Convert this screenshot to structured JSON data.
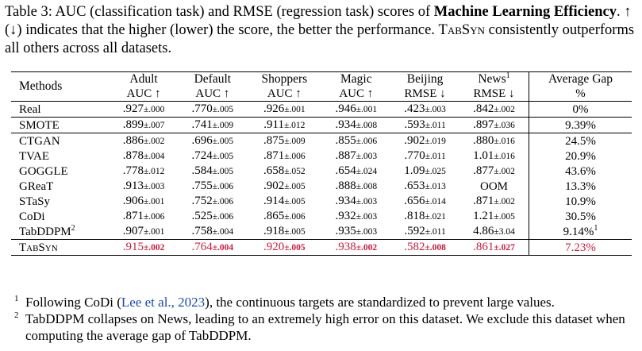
{
  "caption": {
    "label": "Table 3:",
    "text_a": " AUC (classification task) and RMSE (regression task) scores of ",
    "bold": "Machine Learning Efficiency",
    "text_b": ". ↑ (↓) indicates that the higher (lower) the score, the better the performance. ",
    "model": "TabSyn",
    "text_c": " consistently outperforms all others across all datasets."
  },
  "header": {
    "methods": "Methods",
    "columns": [
      {
        "name": "Adult",
        "sup": "",
        "metric": "AUC ↑"
      },
      {
        "name": "Default",
        "sup": "",
        "metric": "AUC ↑"
      },
      {
        "name": "Shoppers",
        "sup": "",
        "metric": "AUC ↑"
      },
      {
        "name": "Magic",
        "sup": "",
        "metric": "AUC ↑"
      },
      {
        "name": "Beijing",
        "sup": "",
        "metric": "RMSE ↓"
      },
      {
        "name": "News",
        "sup": "1",
        "metric": "RMSE ↓"
      }
    ],
    "gap": {
      "name": "Average Gap",
      "metric": "%"
    }
  },
  "rows": [
    {
      "method": "Real",
      "sup": "",
      "cells": [
        {
          "v": ".927",
          "s": "±.000"
        },
        {
          "v": ".770",
          "s": "±.005"
        },
        {
          "v": ".926",
          "s": "±.001"
        },
        {
          "v": ".946",
          "s": "±.001"
        },
        {
          "v": ".423",
          "s": "±.003"
        },
        {
          "v": ".842",
          "s": "±.002"
        }
      ],
      "gap": "0%",
      "gap_sup": ""
    },
    {
      "method": "SMOTE",
      "sup": "",
      "cells": [
        {
          "v": ".899",
          "s": "±.007"
        },
        {
          "v": ".741",
          "s": "±.009"
        },
        {
          "v": ".911",
          "s": "±.012"
        },
        {
          "v": ".934",
          "s": "±.008"
        },
        {
          "v": ".593",
          "s": "±.011"
        },
        {
          "v": ".897",
          "s": "±.036"
        }
      ],
      "gap": "9.39%",
      "gap_sup": ""
    },
    {
      "method": "CTGAN",
      "sup": "",
      "cells": [
        {
          "v": ".886",
          "s": "±.002"
        },
        {
          "v": ".696",
          "s": "±.005"
        },
        {
          "v": ".875",
          "s": "±.009"
        },
        {
          "v": ".855",
          "s": "±.006"
        },
        {
          "v": ".902",
          "s": "±.019"
        },
        {
          "v": ".880",
          "s": "±.016"
        }
      ],
      "gap": "24.5%",
      "gap_sup": ""
    },
    {
      "method": "TVAE",
      "sup": "",
      "cells": [
        {
          "v": ".878",
          "s": "±.004"
        },
        {
          "v": ".724",
          "s": "±.005"
        },
        {
          "v": ".871",
          "s": "±.006"
        },
        {
          "v": ".887",
          "s": "±.003"
        },
        {
          "v": ".770",
          "s": "±.011"
        },
        {
          "v": "1.01",
          "s": "±.016"
        }
      ],
      "gap": "20.9%",
      "gap_sup": ""
    },
    {
      "method": "GOGGLE",
      "sup": "",
      "cells": [
        {
          "v": ".778",
          "s": "±.012"
        },
        {
          "v": ".584",
          "s": "±.005"
        },
        {
          "v": ".658",
          "s": "±.052"
        },
        {
          "v": ".654",
          "s": "±.024"
        },
        {
          "v": "1.09",
          "s": "±.025"
        },
        {
          "v": ".877",
          "s": "±.002"
        }
      ],
      "gap": "43.6%",
      "gap_sup": ""
    },
    {
      "method": "GReaT",
      "sup": "",
      "cells": [
        {
          "v": ".913",
          "s": "±.003"
        },
        {
          "v": ".755",
          "s": "±.006"
        },
        {
          "v": ".902",
          "s": "±.005"
        },
        {
          "v": ".888",
          "s": "±.008"
        },
        {
          "v": ".653",
          "s": "±.013"
        },
        {
          "v": "OOM",
          "s": ""
        }
      ],
      "gap": "13.3%",
      "gap_sup": ""
    },
    {
      "method": "STaSy",
      "sup": "",
      "cells": [
        {
          "v": ".906",
          "s": "±.001"
        },
        {
          "v": ".752",
          "s": "±.006"
        },
        {
          "v": ".914",
          "s": "±.005"
        },
        {
          "v": ".934",
          "s": "±.003"
        },
        {
          "v": ".656",
          "s": "±.014"
        },
        {
          "v": ".871",
          "s": "±.002"
        }
      ],
      "gap": "10.9%",
      "gap_sup": ""
    },
    {
      "method": "CoDi",
      "sup": "",
      "cells": [
        {
          "v": ".871",
          "s": "±.006"
        },
        {
          "v": ".525",
          "s": "±.006"
        },
        {
          "v": ".865",
          "s": "±.006"
        },
        {
          "v": ".932",
          "s": "±.003"
        },
        {
          "v": ".818",
          "s": "±.021"
        },
        {
          "v": "1.21",
          "s": "±.005"
        }
      ],
      "gap": "30.5%",
      "gap_sup": ""
    },
    {
      "method": "TabDDPM",
      "sup": "2",
      "cells": [
        {
          "v": ".907",
          "s": "±.001"
        },
        {
          "v": ".758",
          "s": "±.004"
        },
        {
          "v": ".918",
          "s": "±.005"
        },
        {
          "v": ".935",
          "s": "±.003"
        },
        {
          "v": ".592",
          "s": "±.011"
        },
        {
          "v": "4.86",
          "s": "±3.04"
        }
      ],
      "gap": "9.14%",
      "gap_sup": "1"
    },
    {
      "method": "TabSyn",
      "sup": "",
      "cells": [
        {
          "v": ".915",
          "s": "±.002"
        },
        {
          "v": ".764",
          "s": "±.004"
        },
        {
          "v": ".920",
          "s": "±.005"
        },
        {
          "v": ".938",
          "s": "±.002"
        },
        {
          "v": ".582",
          "s": "±.008"
        },
        {
          "v": ".861",
          "s": "±.027"
        }
      ],
      "gap": "7.23%",
      "gap_sup": ""
    }
  ],
  "footnotes": [
    {
      "mark": "1",
      "text_a": "Following CoDi (",
      "link": "Lee et al., 2023",
      "text_b": "), the continuous targets are standardized to prevent large values."
    },
    {
      "mark": "2",
      "text_a": "TabDDPM collapses on News, leading to an extremely high error on this dataset. We exclude this dataset when computing the average gap of TabDDPM.",
      "link": "",
      "text_b": ""
    }
  ],
  "colors": {
    "highlight": "#cc1c3c",
    "link": "#1a4aa8"
  }
}
